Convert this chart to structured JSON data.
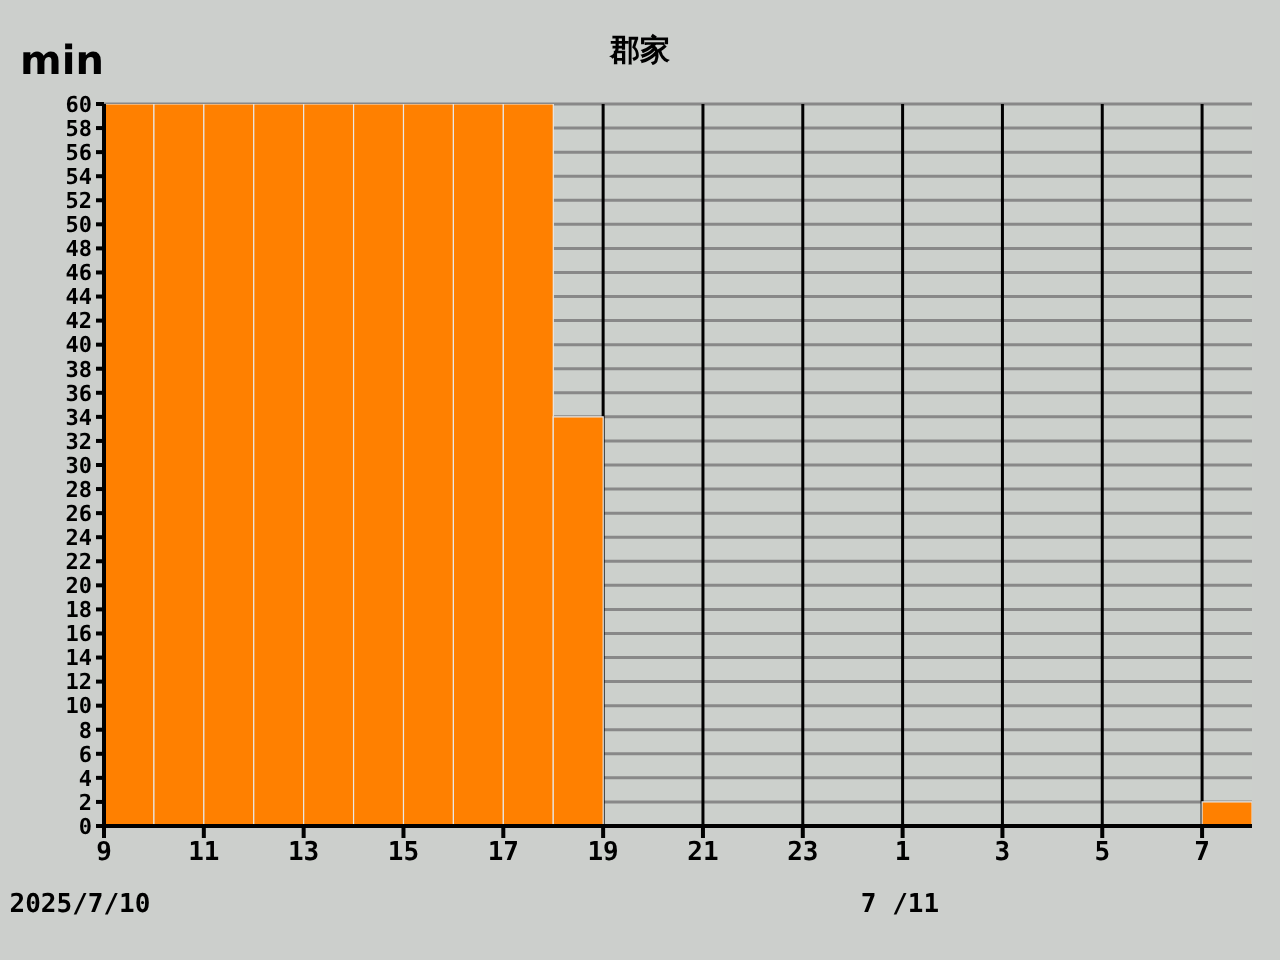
{
  "chart_data": {
    "type": "histogram",
    "title": "郡家",
    "ylabel": "min",
    "bins": [
      "2025-07-10T09:00",
      "2025-07-10T10:00",
      "2025-07-10T11:00",
      "2025-07-10T12:00",
      "2025-07-10T13:00",
      "2025-07-10T14:00",
      "2025-07-10T15:00",
      "2025-07-10T16:00",
      "2025-07-10T17:00",
      "2025-07-10T18:00",
      "2025-07-10T19:00",
      "2025-07-10T20:00",
      "2025-07-10T21:00",
      "2025-07-10T22:00",
      "2025-07-10T23:00",
      "2025-07-11T00:00",
      "2025-07-11T01:00",
      "2025-07-11T02:00",
      "2025-07-11T03:00",
      "2025-07-11T04:00",
      "2025-07-11T05:00",
      "2025-07-11T06:00",
      "2025-07-11T07:00",
      "2025-07-11T08:00"
    ],
    "values": [
      60,
      60,
      60,
      60,
      60,
      60,
      60,
      60,
      60,
      34,
      0,
      0,
      0,
      0,
      0,
      0,
      0,
      0,
      0,
      0,
      0,
      0,
      2
    ],
    "color": "#ff8000",
    "xlim": [
      "2025-07-10T09:00",
      "2025-07-11T08:00"
    ],
    "xticks": [
      {
        "value": "2025-07-10T09:00",
        "label": "9"
      },
      {
        "value": "2025-07-10T11:00",
        "label": "11"
      },
      {
        "value": "2025-07-10T13:00",
        "label": "13"
      },
      {
        "value": "2025-07-10T15:00",
        "label": "15"
      },
      {
        "value": "2025-07-10T17:00",
        "label": "17"
      },
      {
        "value": "2025-07-10T19:00",
        "label": "19"
      },
      {
        "value": "2025-07-10T21:00",
        "label": "21"
      },
      {
        "value": "2025-07-10T23:00",
        "label": "23"
      },
      {
        "value": "2025-07-11T01:00",
        "label": "1"
      },
      {
        "value": "2025-07-11T03:00",
        "label": "3"
      },
      {
        "value": "2025-07-11T05:00",
        "label": "5"
      },
      {
        "value": "2025-07-11T07:00",
        "label": "7"
      }
    ],
    "ylim": [
      0,
      60
    ],
    "yticks": [
      0,
      2,
      4,
      6,
      8,
      10,
      12,
      14,
      16,
      18,
      20,
      22,
      24,
      26,
      28,
      30,
      32,
      34,
      36,
      38,
      40,
      42,
      44,
      46,
      48,
      50,
      52,
      54,
      56,
      58,
      60
    ],
    "grid": true,
    "annotations": [
      "2025/7/10",
      "7 /11"
    ]
  }
}
